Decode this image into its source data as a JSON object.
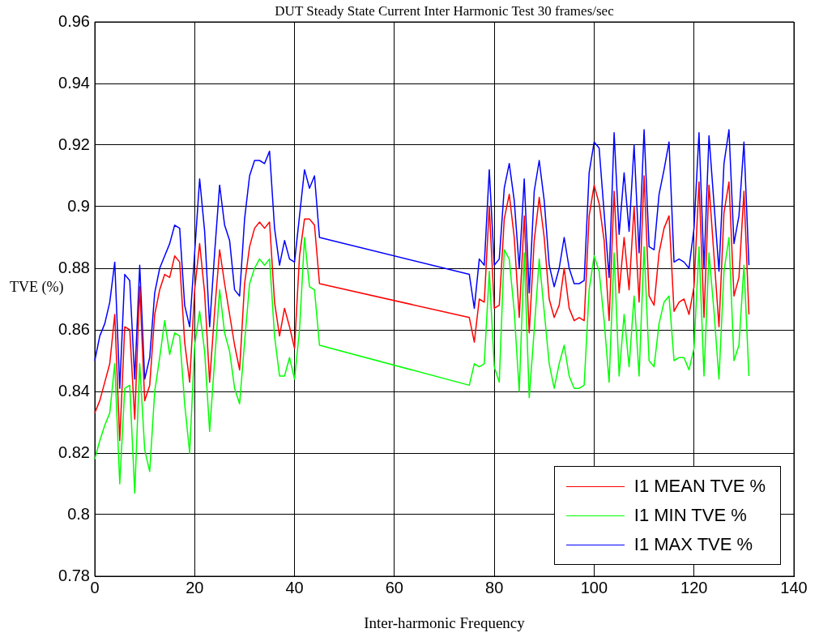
{
  "chart_data": {
    "type": "line",
    "title": "DUT Steady State Current Inter Harmonic Test 30 frames/sec",
    "xlabel": "Inter-harmonic Frequency",
    "ylabel": "TVE (%)",
    "x": [
      0,
      1,
      2,
      3,
      4,
      5,
      6,
      7,
      8,
      9,
      10,
      11,
      12,
      13,
      14,
      15,
      16,
      17,
      18,
      19,
      20,
      21,
      22,
      23,
      24,
      25,
      26,
      27,
      28,
      29,
      30,
      31,
      32,
      33,
      34,
      35,
      36,
      37,
      38,
      39,
      40,
      41,
      42,
      43,
      44,
      45,
      75,
      76,
      77,
      78,
      79,
      80,
      81,
      82,
      83,
      84,
      85,
      86,
      87,
      88,
      89,
      90,
      91,
      92,
      93,
      94,
      95,
      96,
      97,
      98,
      99,
      100,
      101,
      102,
      103,
      104,
      105,
      106,
      107,
      108,
      109,
      110,
      111,
      112,
      113,
      114,
      115,
      116,
      117,
      118,
      119,
      120,
      121,
      122,
      123,
      124,
      125,
      126,
      127,
      128,
      129,
      130,
      131
    ],
    "series": [
      {
        "name": "I1 MEAN TVE %",
        "color": "#ff0000",
        "values": [
          0.833,
          0.837,
          0.843,
          0.849,
          0.865,
          0.824,
          0.861,
          0.86,
          0.831,
          0.874,
          0.837,
          0.842,
          0.865,
          0.873,
          0.878,
          0.877,
          0.884,
          0.882,
          0.856,
          0.843,
          0.873,
          0.888,
          0.872,
          0.843,
          0.866,
          0.886,
          0.875,
          0.865,
          0.855,
          0.847,
          0.875,
          0.887,
          0.893,
          0.895,
          0.893,
          0.895,
          0.869,
          0.858,
          0.867,
          0.861,
          0.854,
          0.884,
          0.896,
          0.896,
          0.894,
          0.875,
          0.864,
          0.856,
          0.87,
          0.869,
          0.9,
          0.867,
          0.868,
          0.896,
          0.904,
          0.89,
          0.864,
          0.897,
          0.859,
          0.889,
          0.903,
          0.89,
          0.87,
          0.864,
          0.868,
          0.88,
          0.867,
          0.863,
          0.864,
          0.863,
          0.897,
          0.907,
          0.901,
          0.889,
          0.863,
          0.905,
          0.872,
          0.89,
          0.873,
          0.9,
          0.869,
          0.91,
          0.871,
          0.868,
          0.885,
          0.893,
          0.897,
          0.866,
          0.869,
          0.87,
          0.865,
          0.874,
          0.908,
          0.864,
          0.907,
          0.884,
          0.861,
          0.898,
          0.908,
          0.871,
          0.877,
          0.905,
          0.865
        ]
      },
      {
        "name": "I1 MIN TVE %",
        "color": "#00ff00",
        "values": [
          0.818,
          0.824,
          0.829,
          0.833,
          0.849,
          0.81,
          0.841,
          0.842,
          0.807,
          0.849,
          0.821,
          0.814,
          0.84,
          0.851,
          0.863,
          0.852,
          0.859,
          0.858,
          0.836,
          0.82,
          0.855,
          0.866,
          0.853,
          0.827,
          0.85,
          0.873,
          0.859,
          0.853,
          0.841,
          0.836,
          0.856,
          0.875,
          0.88,
          0.883,
          0.881,
          0.883,
          0.858,
          0.845,
          0.845,
          0.851,
          0.844,
          0.86,
          0.89,
          0.874,
          0.873,
          0.855,
          0.842,
          0.849,
          0.848,
          0.849,
          0.879,
          0.848,
          0.843,
          0.886,
          0.883,
          0.866,
          0.84,
          0.885,
          0.838,
          0.86,
          0.883,
          0.866,
          0.849,
          0.841,
          0.849,
          0.855,
          0.845,
          0.841,
          0.841,
          0.842,
          0.873,
          0.884,
          0.879,
          0.863,
          0.843,
          0.885,
          0.845,
          0.865,
          0.848,
          0.871,
          0.845,
          0.887,
          0.85,
          0.848,
          0.862,
          0.869,
          0.871,
          0.85,
          0.851,
          0.851,
          0.847,
          0.854,
          0.887,
          0.845,
          0.885,
          0.866,
          0.844,
          0.879,
          0.89,
          0.85,
          0.855,
          0.881,
          0.845
        ]
      },
      {
        "name": "I1 MAX TVE %",
        "color": "#0000ff",
        "values": [
          0.85,
          0.858,
          0.862,
          0.869,
          0.882,
          0.841,
          0.878,
          0.876,
          0.844,
          0.881,
          0.844,
          0.851,
          0.872,
          0.88,
          0.884,
          0.888,
          0.894,
          0.893,
          0.868,
          0.861,
          0.885,
          0.909,
          0.892,
          0.861,
          0.885,
          0.907,
          0.894,
          0.889,
          0.873,
          0.871,
          0.896,
          0.91,
          0.915,
          0.915,
          0.914,
          0.918,
          0.893,
          0.881,
          0.889,
          0.883,
          0.882,
          0.897,
          0.912,
          0.906,
          0.91,
          0.89,
          0.878,
          0.867,
          0.883,
          0.881,
          0.912,
          0.881,
          0.883,
          0.906,
          0.914,
          0.902,
          0.88,
          0.909,
          0.872,
          0.905,
          0.915,
          0.902,
          0.881,
          0.874,
          0.88,
          0.89,
          0.88,
          0.875,
          0.875,
          0.876,
          0.911,
          0.921,
          0.919,
          0.898,
          0.877,
          0.924,
          0.891,
          0.911,
          0.892,
          0.92,
          0.885,
          0.925,
          0.887,
          0.886,
          0.904,
          0.912,
          0.921,
          0.882,
          0.883,
          0.882,
          0.88,
          0.893,
          0.924,
          0.88,
          0.923,
          0.901,
          0.879,
          0.914,
          0.925,
          0.888,
          0.897,
          0.921,
          0.881
        ]
      }
    ],
    "xlim": [
      0,
      140
    ],
    "xticks": [
      0,
      20,
      40,
      60,
      80,
      100,
      120,
      140
    ],
    "ylim": [
      0.78,
      0.96
    ],
    "yticks": [
      0.78,
      0.8,
      0.82,
      0.84,
      0.86,
      0.88,
      0.9,
      0.92,
      0.94,
      0.96
    ],
    "grid": true,
    "legend": "bottom right",
    "marker": "none",
    "line_style": "solid"
  }
}
